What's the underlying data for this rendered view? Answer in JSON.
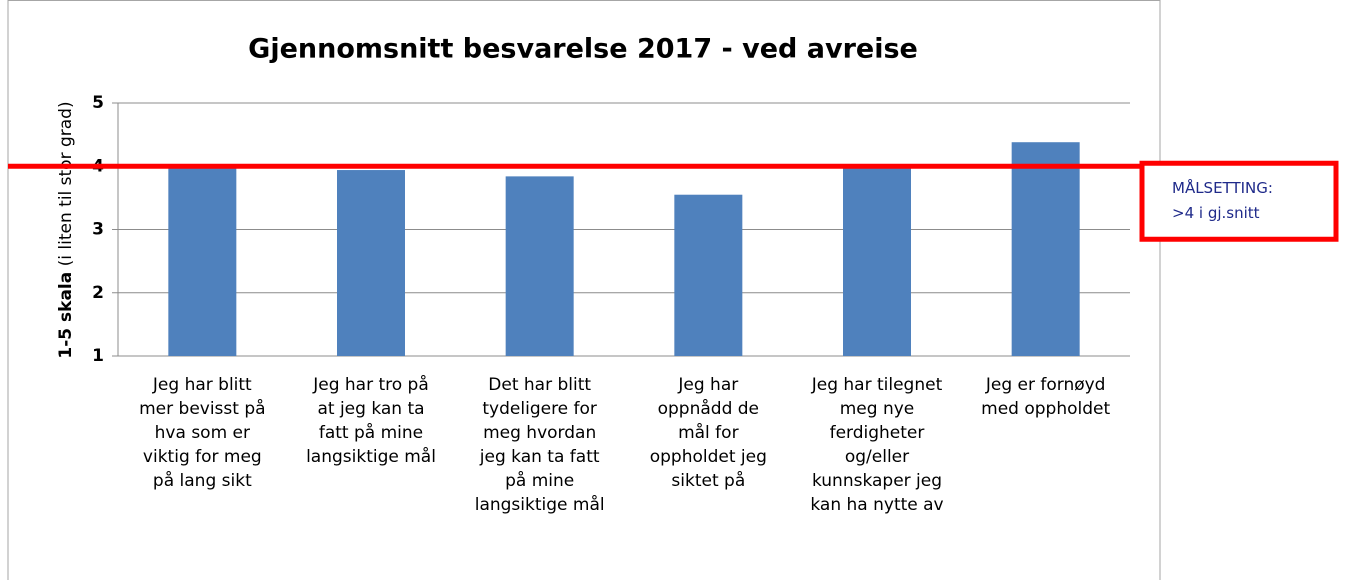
{
  "chart_data": {
    "type": "bar",
    "title": "Gjennomsnitt besvarelse 2017 - ved avreise",
    "ylabel": [
      "1-5 skala",
      "(i liten til stor grad)"
    ],
    "categories": [
      [
        "Jeg har blitt",
        "mer bevisst på",
        "hva som er",
        "viktig for meg",
        "på lang sikt"
      ],
      [
        "Jeg har tro på",
        "at jeg kan ta",
        "fatt på mine",
        "langsiktige mål"
      ],
      [
        "Det har blitt",
        "tydeligere for",
        "meg hvordan",
        "jeg kan ta fatt",
        "på mine",
        "langsiktige mål"
      ],
      [
        "Jeg har",
        "oppnådd de",
        "mål for",
        "oppholdet jeg",
        "siktet på"
      ],
      [
        "Jeg har tilegnet",
        "meg nye",
        "ferdigheter",
        "og/eller",
        "kunnskaper jeg",
        "kan ha nytte av"
      ],
      [
        "Jeg er fornøyd",
        "med oppholdet"
      ]
    ],
    "values": [
      4.0,
      3.94,
      3.84,
      3.55,
      4.02,
      4.38
    ],
    "color": "#4f81bd",
    "ylim": [
      1,
      5
    ],
    "yticks": [
      1,
      2,
      3,
      4,
      5
    ],
    "grid": true,
    "target": 4,
    "target_color": "#ff0000",
    "annotation": [
      "MÅLSETTING:",
      ">4 i gj.snitt"
    ]
  }
}
